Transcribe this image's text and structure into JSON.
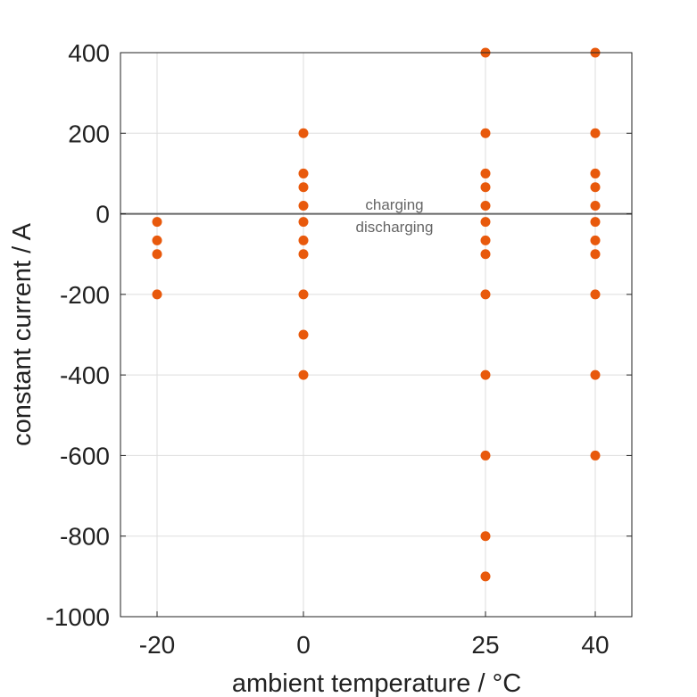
{
  "chart_data": {
    "type": "scatter",
    "xlabel": "ambient temperature / °C",
    "ylabel": "constant current / A",
    "x_ticks": [
      -20,
      0,
      25,
      40
    ],
    "x_tick_labels": [
      "-20",
      "0",
      "25",
      "40"
    ],
    "y_ticks": [
      -1000,
      -800,
      -600,
      -400,
      -200,
      0,
      200,
      400
    ],
    "y_tick_labels": [
      "-1000",
      "-800",
      "-600",
      "-400",
      "-200",
      "0",
      "200",
      "400"
    ],
    "ylim": [
      -1000,
      400
    ],
    "grid": true,
    "reference_line": {
      "y": 0,
      "color": "#666666"
    },
    "annotations": [
      "charging",
      "discharging"
    ],
    "marker_color": "#e8590c",
    "points": [
      {
        "x": -20,
        "y": -20
      },
      {
        "x": -20,
        "y": -66
      },
      {
        "x": -20,
        "y": -100
      },
      {
        "x": -20,
        "y": -200
      },
      {
        "x": 0,
        "y": 200
      },
      {
        "x": 0,
        "y": 100
      },
      {
        "x": 0,
        "y": 66
      },
      {
        "x": 0,
        "y": 20
      },
      {
        "x": 0,
        "y": -20
      },
      {
        "x": 0,
        "y": -66
      },
      {
        "x": 0,
        "y": -100
      },
      {
        "x": 0,
        "y": -200
      },
      {
        "x": 0,
        "y": -300
      },
      {
        "x": 0,
        "y": -400
      },
      {
        "x": 25,
        "y": 400
      },
      {
        "x": 25,
        "y": 200
      },
      {
        "x": 25,
        "y": 100
      },
      {
        "x": 25,
        "y": 66
      },
      {
        "x": 25,
        "y": 20
      },
      {
        "x": 25,
        "y": -20
      },
      {
        "x": 25,
        "y": -66
      },
      {
        "x": 25,
        "y": -100
      },
      {
        "x": 25,
        "y": -200
      },
      {
        "x": 25,
        "y": -400
      },
      {
        "x": 25,
        "y": -600
      },
      {
        "x": 25,
        "y": -800
      },
      {
        "x": 25,
        "y": -900
      },
      {
        "x": 40,
        "y": 400
      },
      {
        "x": 40,
        "y": 200
      },
      {
        "x": 40,
        "y": 100
      },
      {
        "x": 40,
        "y": 66
      },
      {
        "x": 40,
        "y": 20
      },
      {
        "x": 40,
        "y": -20
      },
      {
        "x": 40,
        "y": -66
      },
      {
        "x": 40,
        "y": -100
      },
      {
        "x": 40,
        "y": -200
      },
      {
        "x": 40,
        "y": -400
      },
      {
        "x": 40,
        "y": -600
      }
    ]
  }
}
